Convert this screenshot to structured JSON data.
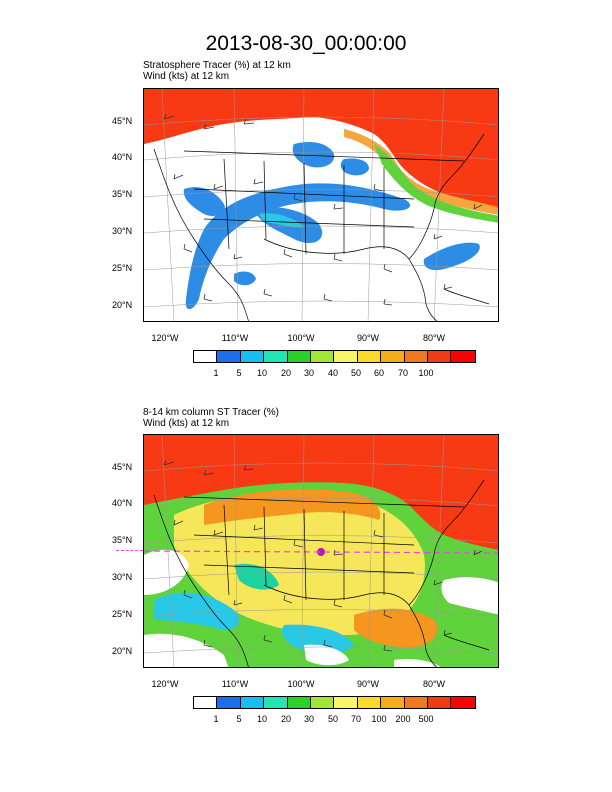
{
  "title": "2013-08-30_00:00:00",
  "panels": [
    {
      "title_line1": "Stratosphere Tracer   (%)    at   12 km",
      "title_line2": "Wind   (kts)     at   12 km",
      "lat_labels": [
        "45°N",
        "40°N",
        "35°N",
        "30°N",
        "25°N",
        "20°N"
      ],
      "lon_labels": [
        "120°W",
        "110°W",
        "100°W",
        "90°W",
        "80°W"
      ],
      "colorbar_labels": [
        "1",
        "5",
        "10",
        "20",
        "30",
        "40",
        "50",
        "60",
        "70",
        "100"
      ]
    },
    {
      "title_line1": "8-14 km column ST Tracer   (%)",
      "title_line2": "Wind   (kts)     at   12 km",
      "lat_labels": [
        "45°N",
        "40°N",
        "35°N",
        "30°N",
        "25°N",
        "20°N"
      ],
      "lon_labels": [
        "120°W",
        "110°W",
        "100°W",
        "90°W",
        "80°W"
      ],
      "colorbar_labels": [
        "1",
        "5",
        "10",
        "20",
        "30",
        "50",
        "70",
        "100",
        "200",
        "500"
      ]
    }
  ],
  "colorbar_colors": [
    "#ffffff",
    "#1e6eeb",
    "#16bff0",
    "#1ee6b4",
    "#28d228",
    "#a0e632",
    "#faf564",
    "#fadc28",
    "#f5ac18",
    "#f0781e",
    "#f03c14",
    "#ff0000"
  ],
  "colors": {
    "red": "#f83a14",
    "orange": "#f5961e",
    "yellow": "#f5e65a",
    "green": "#5fd23c",
    "cyan": "#28c8e6",
    "blue": "#2d8ce6",
    "teal": "#1ed2a0"
  }
}
